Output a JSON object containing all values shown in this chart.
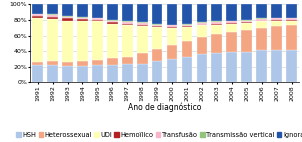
{
  "years": [
    "1991",
    "1992",
    "1993",
    "1994",
    "1995",
    "1996",
    "1997",
    "1998",
    "1999",
    "2000",
    "2001",
    "2002",
    "2003",
    "2004",
    "2005",
    "2006",
    "2007",
    "2008"
  ],
  "categories": [
    "HSH",
    "Heterossexual",
    "UDI",
    "Hemoïlico",
    "Transfusão",
    "Transmissão vertical",
    "Ignorado"
  ],
  "colors": [
    "#aec6e8",
    "#f4a582",
    "#ffffb3",
    "#b22222",
    "#f9b4c8",
    "#92c47d",
    "#2255aa"
  ],
  "data": {
    "HSH": [
      22,
      22,
      21,
      21,
      22,
      22,
      23,
      24,
      27,
      30,
      33,
      36,
      38,
      39,
      39,
      41,
      41,
      41
    ],
    "Heterossexual": [
      4,
      5,
      5,
      6,
      7,
      9,
      10,
      13,
      16,
      18,
      20,
      22,
      24,
      26,
      28,
      29,
      31,
      32
    ],
    "UDI": [
      56,
      54,
      53,
      51,
      49,
      44,
      40,
      35,
      28,
      22,
      18,
      15,
      12,
      10,
      9,
      8,
      7,
      6
    ],
    "Hemoïlico": [
      3,
      3,
      3,
      3,
      2,
      2,
      2,
      2,
      1,
      1,
      1,
      1,
      1,
      1,
      1,
      1,
      1,
      1
    ],
    "Transfusão": [
      2,
      2,
      2,
      2,
      2,
      2,
      2,
      2,
      2,
      2,
      2,
      2,
      2,
      2,
      2,
      2,
      2,
      2
    ],
    "Transmissão vertical": [
      1,
      1,
      1,
      1,
      1,
      1,
      1,
      1,
      1,
      1,
      1,
      1,
      1,
      1,
      1,
      1,
      1,
      1
    ],
    "Ignorado": [
      12,
      13,
      15,
      16,
      17,
      20,
      22,
      23,
      25,
      26,
      25,
      23,
      22,
      21,
      20,
      18,
      17,
      17
    ]
  },
  "xlabel": "Ano de diagnóstico",
  "ylim": [
    0,
    100
  ],
  "yticks": [
    0,
    20,
    40,
    60,
    80,
    100
  ],
  "yticklabels": [
    "0%",
    "20%",
    "40%",
    "60%",
    "80%",
    "100%"
  ],
  "legend_fontsize": 4.8,
  "axis_fontsize": 5.5,
  "tick_fontsize": 4.5
}
